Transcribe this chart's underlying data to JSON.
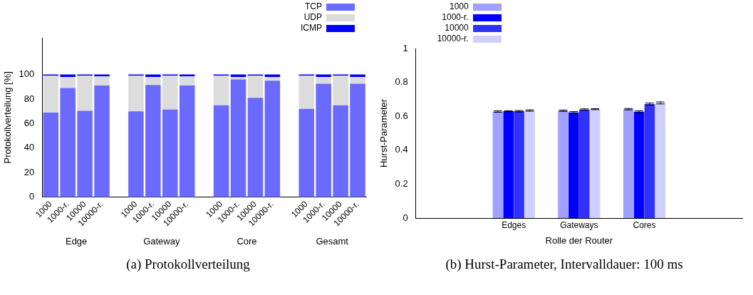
{
  "chart_data": [
    {
      "type": "bar",
      "title": "(a) Protokollverteilung",
      "ylabel": "Protokollverteilung [%]",
      "stacked": true,
      "legend": "top right",
      "ylim": [
        0,
        130
      ],
      "yticks": [
        0,
        20,
        40,
        60,
        80,
        100
      ],
      "categories": [
        "1000",
        "1000-r.",
        "10000",
        "10000-r.",
        null,
        "1000",
        "1000-r.",
        "10000",
        "10000-r.",
        null,
        "1000",
        "1000-r.",
        "10000",
        "10000-r.",
        null,
        "1000",
        "1000-r.",
        "10000",
        "10000-r."
      ],
      "annotations": [
        "Edge",
        "Gateway",
        "Core",
        "Gesamt"
      ],
      "series": [
        {
          "name": "TCP",
          "color": "#6a6aff",
          "values": [
            69,
            89,
            70.5,
            91,
            null,
            70,
            91.5,
            71.5,
            91,
            null,
            75,
            96,
            81,
            95,
            null,
            72,
            92.5,
            75,
            92.5
          ]
        },
        {
          "name": "UDP",
          "color": "#dcdcdc",
          "values": [
            30,
            9,
            28.5,
            7.5,
            null,
            29,
            6.5,
            27.5,
            7.5,
            null,
            24,
            2,
            18,
            3,
            null,
            27,
            5.5,
            24,
            5.5
          ]
        },
        {
          "name": "ICMP",
          "color": "#0000ff",
          "values": [
            1,
            2,
            1,
            1.5,
            null,
            1,
            2,
            1,
            1.5,
            null,
            1,
            2,
            1,
            2,
            null,
            1,
            2,
            1,
            2
          ]
        }
      ]
    },
    {
      "type": "bar",
      "title": "(b) Hurst-Parameter, Intervalldauer: 100 ms",
      "xlabel": "Rolle der Router",
      "ylabel": "Hurst-Parameter",
      "legend": "top left",
      "ylim": [
        0,
        1
      ],
      "yticks": [
        0,
        0.2,
        0.4,
        0.6,
        0.8,
        1
      ],
      "categories": [
        null,
        "Edges",
        "Gateways",
        "Cores",
        null
      ],
      "series": [
        {
          "name": "1000",
          "color": "#a0a0ff",
          "values": [
            null,
            0.628,
            0.633,
            0.642,
            null
          ],
          "errors": [
            null,
            0.004,
            0.004,
            0.004,
            null
          ]
        },
        {
          "name": "1000-r.",
          "color": "#0000ff",
          "values": [
            null,
            0.63,
            0.623,
            0.627,
            null
          ],
          "errors": [
            null,
            0.003,
            0.005,
            0.005,
            null
          ]
        },
        {
          "name": "10000",
          "color": "#3030ff",
          "values": [
            null,
            0.63,
            0.64,
            0.672,
            null
          ],
          "errors": [
            null,
            0.004,
            0.004,
            0.006,
            null
          ]
        },
        {
          "name": "10000-r.",
          "color": "#d0d0ff",
          "values": [
            null,
            0.634,
            0.642,
            0.679,
            null
          ],
          "errors": [
            null,
            0.004,
            0.003,
            0.006,
            null
          ]
        }
      ]
    }
  ]
}
